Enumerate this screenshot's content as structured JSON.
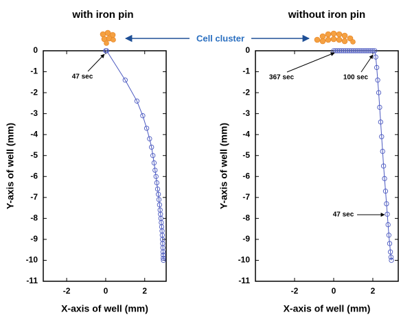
{
  "chart_data": [
    {
      "type": "line",
      "marker": "circle",
      "title": "with iron pin",
      "x_label": "X-axis of well (mm)",
      "y_label": "Y-axis of well (mm)",
      "color": "#4a58c0",
      "x": [
        0,
        0.05,
        1.0,
        1.6,
        1.9,
        2.1,
        2.25,
        2.35,
        2.42,
        2.48,
        2.53,
        2.58,
        2.62,
        2.66,
        2.7,
        2.73,
        2.76,
        2.79,
        2.81,
        2.83,
        2.85,
        2.87,
        2.89,
        2.9,
        2.91,
        2.92,
        2.93,
        2.94,
        2.95,
        2.95,
        2.96
      ],
      "values": [
        0,
        0,
        -1.4,
        -2.4,
        -3.1,
        -3.7,
        -4.2,
        -4.6,
        -5.0,
        -5.35,
        -5.7,
        -6.0,
        -6.3,
        -6.6,
        -6.85,
        -7.1,
        -7.35,
        -7.6,
        -7.8,
        -8.0,
        -8.2,
        -8.4,
        -8.6,
        -8.8,
        -9.0,
        -9.2,
        -9.4,
        -9.6,
        -9.75,
        -9.9,
        -10.0
      ],
      "xlim": [
        -3.2,
        3.1
      ],
      "ylim": [
        -11,
        0
      ],
      "xticks": [
        -2,
        0,
        2
      ],
      "yticks": [
        0,
        -1,
        -2,
        -3,
        -4,
        -5,
        -6,
        -7,
        -8,
        -9,
        -10,
        -11
      ],
      "annotations": [
        "47 sec"
      ]
    },
    {
      "type": "line",
      "marker": "circle",
      "title": "without iron pin",
      "x_label": "X-axis of well (mm)",
      "y_label": "Y-axis of well (mm)",
      "color": "#4a58c0",
      "x": [
        0,
        0.1,
        0.2,
        0.3,
        0.4,
        0.5,
        0.6,
        0.7,
        0.8,
        0.9,
        1.0,
        1.1,
        1.2,
        1.3,
        1.4,
        1.5,
        1.6,
        1.7,
        1.8,
        1.9,
        2.0,
        2.1,
        2.15,
        2.2,
        2.25,
        2.3,
        2.35,
        2.4,
        2.45,
        2.5,
        2.55,
        2.6,
        2.65,
        2.7,
        2.74,
        2.78,
        2.82,
        2.86,
        2.9,
        2.93,
        2.95
      ],
      "values": [
        0,
        0,
        0,
        0,
        0,
        0,
        0,
        0,
        0,
        0,
        0,
        0,
        0,
        0,
        0,
        0,
        0,
        0,
        0,
        0,
        0,
        0,
        -0.3,
        -0.8,
        -1.4,
        -2.0,
        -2.7,
        -3.4,
        -4.1,
        -4.8,
        -5.5,
        -6.1,
        -6.7,
        -7.3,
        -7.8,
        -8.3,
        -8.8,
        -9.2,
        -9.6,
        -9.85,
        -10.0
      ],
      "xlim": [
        -4,
        3.3
      ],
      "ylim": [
        -11,
        0
      ],
      "xticks": [
        -2,
        0,
        2
      ],
      "yticks": [
        0,
        -1,
        -2,
        -3,
        -4,
        -5,
        -6,
        -7,
        -8,
        -9,
        -10,
        -11
      ],
      "annotations": [
        "367 sec",
        "100 sec",
        "47 sec"
      ]
    }
  ],
  "shared_annotation": "Cell cluster"
}
